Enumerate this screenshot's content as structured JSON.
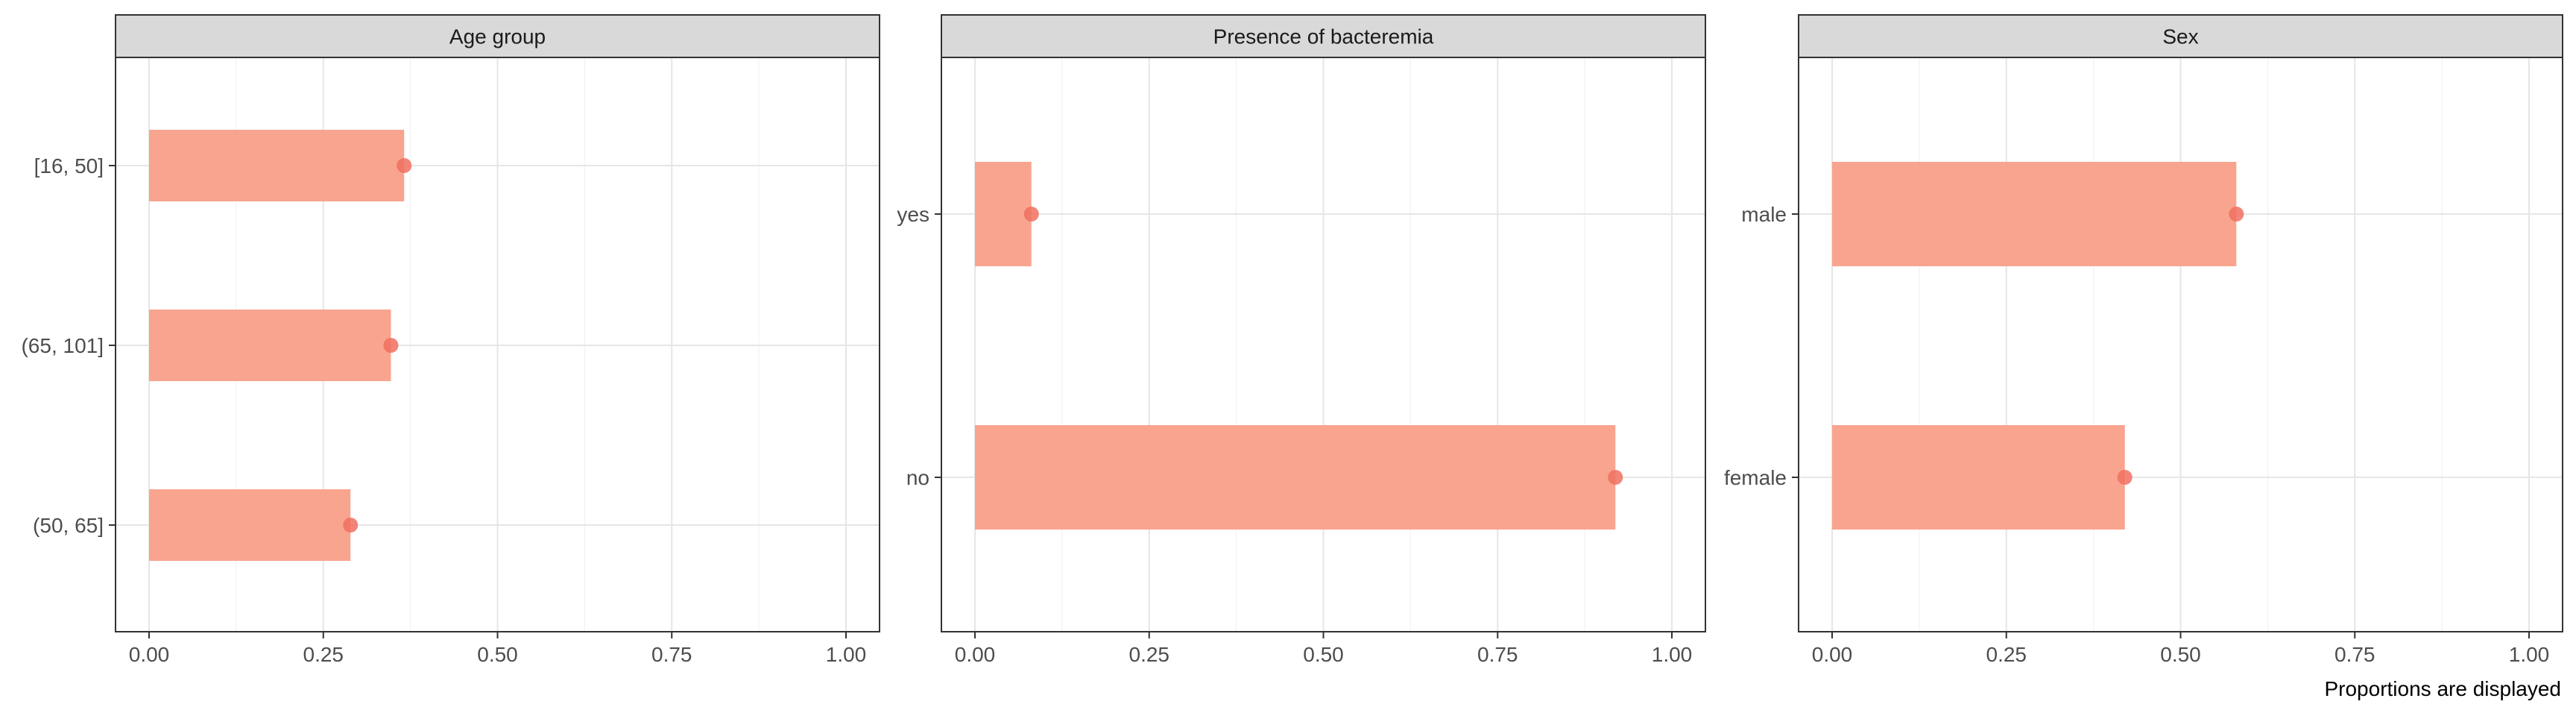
{
  "chart_data": [
    {
      "type": "bar",
      "title": "Age group",
      "categories": [
        "[16, 50]",
        "(65, 101]",
        "(50, 65]"
      ],
      "values": [
        0.366,
        0.347,
        0.289
      ],
      "xlim": [
        0,
        1
      ],
      "xticks": [
        "0.00",
        "0.25",
        "0.50",
        "0.75",
        "1.00"
      ],
      "orientation": "horizontal",
      "grid": true
    },
    {
      "type": "bar",
      "title": "Presence of bacteremia",
      "categories": [
        "yes",
        "no"
      ],
      "values": [
        0.081,
        0.919
      ],
      "xlim": [
        0,
        1
      ],
      "xticks": [
        "0.00",
        "0.25",
        "0.50",
        "0.75",
        "1.00"
      ],
      "orientation": "horizontal",
      "grid": true
    },
    {
      "type": "bar",
      "title": "Sex",
      "categories": [
        "male",
        "female"
      ],
      "values": [
        0.58,
        0.42
      ],
      "xlim": [
        0,
        1
      ],
      "xticks": [
        "0.00",
        "0.25",
        "0.50",
        "0.75",
        "1.00"
      ],
      "orientation": "horizontal",
      "grid": true
    }
  ],
  "caption": "Proportions are displayed",
  "colors": {
    "bar": "#F8A48F",
    "point": "#F07060",
    "strip_fill": "#d9d9d9",
    "grid": "#e6e6e6",
    "panel_border": "#333333"
  }
}
